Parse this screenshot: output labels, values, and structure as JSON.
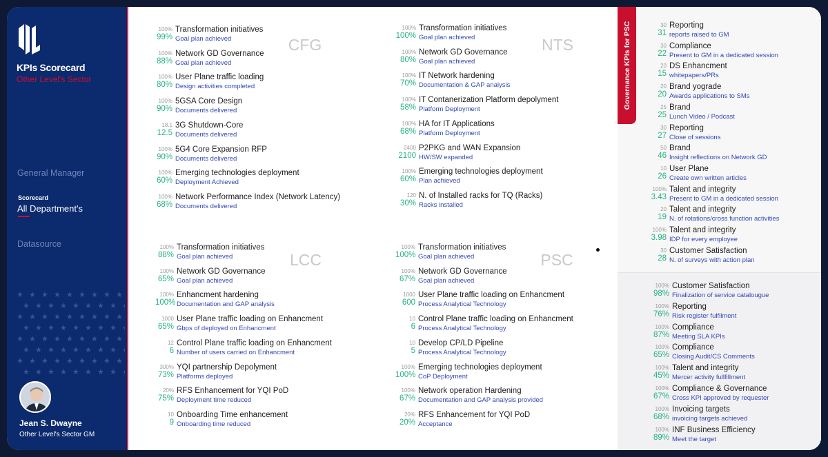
{
  "sidebar": {
    "title": "KPIs Scorecard",
    "subtitle": "Other Level's Sector",
    "nav_general_manager": "General Manager",
    "nav_scorecard_small": "Scorecard",
    "nav_all_departments": "All Department's",
    "nav_datasource": "Datasource",
    "user_name": "Jean S. Dwayne",
    "user_role": "Other Level's Sector GM",
    "logo_text": "OL"
  },
  "colors": {
    "navy": "#0c2a6e",
    "accent_red": "#c8102e",
    "value_green": "#26b383",
    "subtitle_blue": "#3347b5"
  },
  "quadrants": [
    {
      "label": "CFG",
      "items": [
        {
          "target": "100%",
          "value": "99%",
          "title": "Transformation initiatives",
          "subtitle": "Goal plan achieved"
        },
        {
          "target": "100%",
          "value": "88%",
          "title": "Network GD Governance",
          "subtitle": "Goal plan achieved"
        },
        {
          "target": "100%",
          "value": "80%",
          "title": "User Plane traffic loading",
          "subtitle": "Design activities completed"
        },
        {
          "target": "100%",
          "value": "90%",
          "title": "5GSA Core Design",
          "subtitle": "Documents delivered"
        },
        {
          "target": "18.1",
          "value": "12.5",
          "title": "3G Shutdown-Core",
          "subtitle": "Documents delivered"
        },
        {
          "target": "100%",
          "value": "90%",
          "title": "5G4 Core Expansion RFP",
          "subtitle": "Documents delivered"
        },
        {
          "target": "100%",
          "value": "60%",
          "title": "Emerging technologies deployment",
          "subtitle": "Deployment Achieved"
        },
        {
          "target": "100%",
          "value": "68%",
          "title": "Network Performance Index (Network Latency)",
          "subtitle": "Documents delivered"
        }
      ]
    },
    {
      "label": "NTS",
      "items": [
        {
          "target": "100%",
          "value": "100%",
          "title": "Transformation initiatives",
          "subtitle": "Goal plan achieved"
        },
        {
          "target": "100%",
          "value": "80%",
          "title": "Network GD Governance",
          "subtitle": "Goal plan achieved"
        },
        {
          "target": "100%",
          "value": "70%",
          "title": "IT Network hardening",
          "subtitle": "Documentation & GAP analysis"
        },
        {
          "target": "100%",
          "value": "58%",
          "title": "IT Contanerization Platform depolyment",
          "subtitle": "Platform Deployment"
        },
        {
          "target": "100%",
          "value": "68%",
          "title": "HA for IT Applications",
          "subtitle": "Platform Deployment"
        },
        {
          "target": "2400",
          "value": "2100",
          "title": "P2PKG and WAN Expansion",
          "subtitle": "HW/SW expanded"
        },
        {
          "target": "100%",
          "value": "60%",
          "title": "Emerging technologies deployment",
          "subtitle": "Plan achieved"
        },
        {
          "target": "120",
          "value": "30%",
          "title": "N. of Installed racks for TQ (Racks)",
          "subtitle": "Racks installed"
        }
      ]
    },
    {
      "label": "LCC",
      "items": [
        {
          "target": "100%",
          "value": "88%",
          "title": "Transformation initiatives",
          "subtitle": "Goal plan achieved"
        },
        {
          "target": "100%",
          "value": "65%",
          "title": "Network GD Governance",
          "subtitle": "Goal plan achieved"
        },
        {
          "target": "100%",
          "value": "100%",
          "title": "Enhancment hardening",
          "subtitle": "Documentation and GAP analysis"
        },
        {
          "target": "1000",
          "value": "65%",
          "title": "User Plane traffic loading on Enhancment",
          "subtitle": "Gbps of deployed on Enhancment"
        },
        {
          "target": "12",
          "value": "6",
          "title": "Control Plane traffic loading on Enhancment",
          "subtitle": "Number of users carried on Enhancment"
        },
        {
          "target": "300%",
          "value": "73%",
          "title": "YQI partnership Depolyment",
          "subtitle": "Platforms deployed"
        },
        {
          "target": "20%",
          "value": "75%",
          "title": "RFS Enhancement for YQI PoD",
          "subtitle": "Deployment time reduced"
        },
        {
          "target": "10",
          "value": "9",
          "title": "Onboarding Time enhancement",
          "subtitle": "Onboarding time reduced"
        }
      ]
    },
    {
      "label": "PSC",
      "items": [
        {
          "target": "100%",
          "value": "100%",
          "title": "Transformation initiatives",
          "subtitle": "Goal plan achieved"
        },
        {
          "target": "100%",
          "value": "67%",
          "title": "Network GD Governance",
          "subtitle": "Goal plan achieved"
        },
        {
          "target": "1000",
          "value": "600",
          "title": "User Plane traffic loading on Enhancment",
          "subtitle": "Process Analytical Technology"
        },
        {
          "target": "10",
          "value": "6",
          "title": "Control Plane traffic loading on Enhancment",
          "subtitle": "Process Analytical Technology"
        },
        {
          "target": "10",
          "value": "5",
          "title": "Develop CP/LD Pipeline",
          "subtitle": "Process Analytical Technology"
        },
        {
          "target": "100%",
          "value": "100%",
          "title": "Emerging technologies deployment",
          "subtitle": "CoP Deployment"
        },
        {
          "target": "100%",
          "value": "67%",
          "title": "Network operation Hardening",
          "subtitle": "Documentation and GAP analysis provided"
        },
        {
          "target": "20%",
          "value": "20%",
          "title": "RFS Enhancement for YQI PoD",
          "subtitle": "Acceptance"
        }
      ]
    }
  ],
  "governance": {
    "tab_label": "Governance KPIs for PSC",
    "top_items": [
      {
        "target": "30",
        "value": "31",
        "title": "Reporting",
        "subtitle": "reports raised to GM"
      },
      {
        "target": "30",
        "value": "22",
        "title": "Compliance",
        "subtitle": "Present to GM in a dedicated session"
      },
      {
        "target": "20",
        "value": "15",
        "title": "DS Enhancment",
        "subtitle": "whitepapers/PRs"
      },
      {
        "target": "20",
        "value": "20",
        "title": "Brand yograde",
        "subtitle": "Awards applications to SMs"
      },
      {
        "target": "25",
        "value": "25",
        "title": "Brand",
        "subtitle": "Lunch Video / Podcast"
      },
      {
        "target": "30",
        "value": "27",
        "title": "Reporting",
        "subtitle": "Close of sessions"
      },
      {
        "target": "50",
        "value": "46",
        "title": "Brand",
        "subtitle": "Insight reflections on Network GD"
      },
      {
        "target": "10",
        "value": "26",
        "title": "User Plane",
        "subtitle": "Create own written articles"
      },
      {
        "target": "100%",
        "value": "3.43",
        "title": "Talent and integrity",
        "subtitle": "Present to GM in a dedicated session"
      },
      {
        "target": "20",
        "value": "19",
        "title": "Talent and integrity",
        "subtitle": "N. of rotations/cross function activities"
      },
      {
        "target": "100%",
        "value": "3.98",
        "title": "Talent and integrity",
        "subtitle": "IDP for every employee"
      },
      {
        "target": "30",
        "value": "28",
        "title": "Customer Satisfaction",
        "subtitle": "N. of surveys with action plan"
      }
    ],
    "bottom_items": [
      {
        "target": "100%",
        "value": "98%",
        "title": "Customer Satisfaction",
        "subtitle": "Finalization of service catalougue"
      },
      {
        "target": "100%",
        "value": "76%",
        "title": "Reporting",
        "subtitle": "Risk register fulfilment"
      },
      {
        "target": "100%",
        "value": "87%",
        "title": "Compliance",
        "subtitle": "Meeting SLA KPIs"
      },
      {
        "target": "100%",
        "value": "65%",
        "title": "Compliance",
        "subtitle": "Closing Audit/CS Comments"
      },
      {
        "target": "100%",
        "value": "45%",
        "title": "Talent and integrity",
        "subtitle": "Mercer activity fullfillment"
      },
      {
        "target": "100%",
        "value": "67%",
        "title": "Compliance & Governance",
        "subtitle": "Cross KPI approved by requester"
      },
      {
        "target": "100%",
        "value": "68%",
        "title": "Invoicing targets",
        "subtitle": "invoicing targets achieved"
      },
      {
        "target": "100%",
        "value": "89%",
        "title": "INF Business Efficiency",
        "subtitle": "Meet the target"
      }
    ]
  }
}
